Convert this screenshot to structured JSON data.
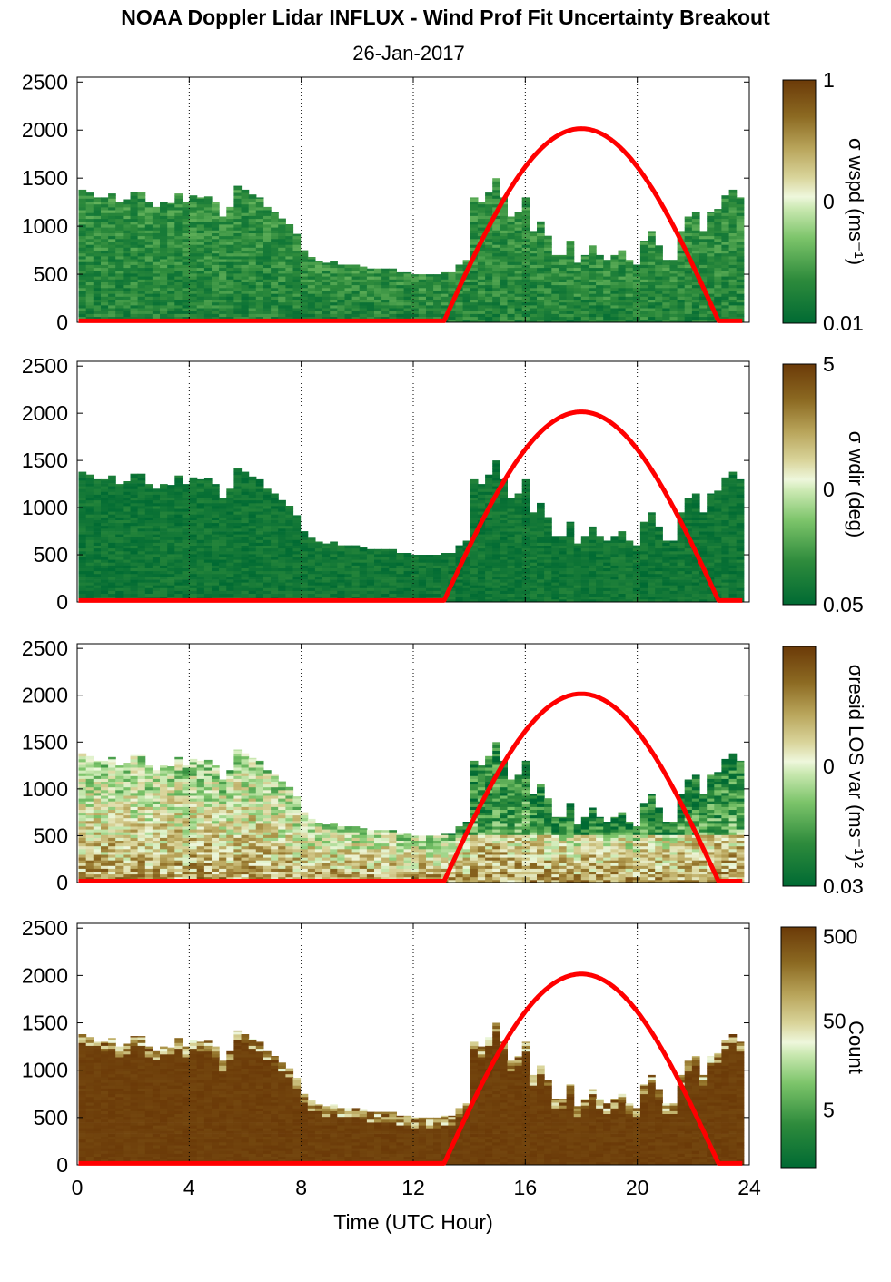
{
  "title": "NOAA Doppler Lidar INFLUX - Wind Prof Fit Uncertainty Breakout",
  "subtitle": "26-Jan-2017",
  "colors": {
    "sun_curve": "#ff0000",
    "scale_low": "#006a33",
    "scale_mid": "#e6f5d0",
    "scale_high": "#6b3a08"
  },
  "chart_data": [
    {
      "type": "heatmap",
      "title": "",
      "xlabel": "",
      "ylabel": "",
      "xlim": [
        0,
        24
      ],
      "ylim": [
        0,
        2550
      ],
      "x_ticks": [
        0,
        4,
        8,
        12,
        16,
        20,
        24
      ],
      "y_ticks": [
        0,
        500,
        1000,
        1500,
        2000,
        2500
      ],
      "grid": "vertical dotted every 4 h",
      "colorbar": {
        "label": "σ wspd (ms⁻¹)",
        "ticks": [
          "1",
          "0",
          "0.01"
        ],
        "scale": "log"
      },
      "data_top_m": [
        1380,
        1350,
        1300,
        1300,
        1340,
        1250,
        1280,
        1360,
        1360,
        1250,
        1200,
        1250,
        1240,
        1340,
        1250,
        1320,
        1300,
        1310,
        1250,
        1100,
        1200,
        1420,
        1380,
        1330,
        1300,
        1200,
        1150,
        1080,
        1020,
        920,
        750,
        680,
        640,
        620,
        640,
        600,
        600,
        600,
        580,
        560,
        560,
        560,
        560,
        520,
        520,
        500,
        500,
        500,
        500,
        520,
        520,
        600,
        650,
        1300,
        1250,
        1350,
        1500,
        1300,
        1100,
        1150,
        1300,
        950,
        1050,
        900,
        700,
        700,
        850,
        620,
        700,
        800,
        700,
        650,
        700,
        750,
        650,
        600,
        850,
        950,
        800,
        650,
        650,
        950,
        1100,
        1150,
        950,
        1150,
        1180,
        1320,
        1380,
        1300
      ],
      "sun_elevation_peak_m": 2000,
      "sun_rise_utc_h": 13.1,
      "sun_set_utc_h": 22.9,
      "sun_peak_utc_h": 18.0,
      "tone": "green"
    },
    {
      "type": "heatmap",
      "title": "",
      "xlabel": "",
      "ylabel": "",
      "xlim": [
        0,
        24
      ],
      "ylim": [
        0,
        2550
      ],
      "x_ticks": [
        0,
        4,
        8,
        12,
        16,
        20,
        24
      ],
      "y_ticks": [
        0,
        500,
        1000,
        1500,
        2000,
        2500
      ],
      "grid": "vertical dotted every 4 h",
      "colorbar": {
        "label": "σ wdir (deg)",
        "ticks": [
          "5",
          "0",
          "0.05"
        ],
        "scale": "log"
      },
      "data_top_m": [
        1380,
        1350,
        1300,
        1300,
        1340,
        1250,
        1280,
        1360,
        1360,
        1250,
        1200,
        1250,
        1240,
        1340,
        1250,
        1320,
        1300,
        1310,
        1250,
        1100,
        1200,
        1420,
        1380,
        1330,
        1300,
        1200,
        1150,
        1080,
        1020,
        920,
        750,
        680,
        640,
        620,
        640,
        600,
        600,
        600,
        580,
        560,
        560,
        560,
        560,
        520,
        520,
        500,
        500,
        500,
        500,
        520,
        520,
        600,
        650,
        1300,
        1250,
        1350,
        1500,
        1300,
        1100,
        1150,
        1300,
        950,
        1050,
        900,
        700,
        700,
        850,
        620,
        700,
        800,
        700,
        650,
        700,
        750,
        650,
        600,
        850,
        950,
        800,
        650,
        650,
        950,
        1100,
        1150,
        950,
        1150,
        1180,
        1320,
        1380,
        1300
      ],
      "sun_elevation_peak_m": 2000,
      "sun_rise_utc_h": 13.1,
      "sun_set_utc_h": 22.9,
      "sun_peak_utc_h": 18.0,
      "tone": "darkgreen"
    },
    {
      "type": "heatmap",
      "title": "",
      "xlabel": "",
      "ylabel": "",
      "xlim": [
        0,
        24
      ],
      "ylim": [
        0,
        2550
      ],
      "x_ticks": [
        0,
        4,
        8,
        12,
        16,
        20,
        24
      ],
      "y_ticks": [
        0,
        500,
        1000,
        1500,
        2000,
        2500
      ],
      "grid": "vertical dotted every 4 h",
      "colorbar": {
        "label": "σresid LOS var (ms⁻¹)²",
        "ticks": [
          "0",
          "0.03"
        ],
        "scale": "log"
      },
      "data_top_m": [
        1380,
        1350,
        1300,
        1300,
        1340,
        1250,
        1280,
        1360,
        1360,
        1250,
        1200,
        1250,
        1240,
        1340,
        1250,
        1320,
        1300,
        1310,
        1250,
        1100,
        1200,
        1420,
        1380,
        1330,
        1300,
        1200,
        1150,
        1080,
        1020,
        920,
        750,
        680,
        640,
        620,
        640,
        600,
        600,
        600,
        580,
        560,
        560,
        560,
        560,
        520,
        520,
        500,
        500,
        500,
        500,
        520,
        520,
        600,
        650,
        1300,
        1250,
        1350,
        1500,
        1300,
        1100,
        1150,
        1300,
        950,
        1050,
        900,
        700,
        700,
        850,
        620,
        700,
        800,
        700,
        650,
        700,
        750,
        650,
        600,
        850,
        950,
        800,
        650,
        650,
        950,
        1100,
        1150,
        950,
        1150,
        1180,
        1320,
        1380,
        1300
      ],
      "sun_elevation_peak_m": 2000,
      "sun_rise_utc_h": 13.1,
      "sun_set_utc_h": 22.9,
      "sun_peak_utc_h": 18.0,
      "tone": "brown"
    },
    {
      "type": "heatmap",
      "title": "",
      "xlabel": "Time (UTC Hour)",
      "ylabel": "",
      "xlim": [
        0,
        24
      ],
      "ylim": [
        0,
        2550
      ],
      "x_ticks": [
        0,
        4,
        8,
        12,
        16,
        20,
        24
      ],
      "y_ticks": [
        0,
        500,
        1000,
        1500,
        2000,
        2500
      ],
      "grid": "vertical dotted every 4 h",
      "colorbar": {
        "label": "Count",
        "ticks": [
          "500",
          "50",
          "5"
        ],
        "scale": "log"
      },
      "data_top_m": [
        1380,
        1350,
        1300,
        1300,
        1340,
        1250,
        1280,
        1360,
        1360,
        1250,
        1200,
        1250,
        1240,
        1340,
        1250,
        1320,
        1300,
        1310,
        1250,
        1100,
        1200,
        1420,
        1380,
        1330,
        1300,
        1200,
        1150,
        1080,
        1020,
        920,
        750,
        680,
        640,
        620,
        640,
        600,
        600,
        600,
        580,
        560,
        560,
        560,
        560,
        520,
        520,
        500,
        500,
        500,
        500,
        520,
        520,
        600,
        650,
        1300,
        1250,
        1350,
        1500,
        1300,
        1100,
        1150,
        1300,
        950,
        1050,
        900,
        700,
        700,
        850,
        620,
        700,
        800,
        700,
        650,
        700,
        750,
        650,
        600,
        850,
        950,
        800,
        650,
        650,
        950,
        1100,
        1150,
        950,
        1150,
        1180,
        1320,
        1380,
        1300
      ],
      "sun_elevation_peak_m": 2000,
      "sun_rise_utc_h": 13.1,
      "sun_set_utc_h": 22.9,
      "sun_peak_utc_h": 18.0,
      "tone": "count"
    }
  ]
}
